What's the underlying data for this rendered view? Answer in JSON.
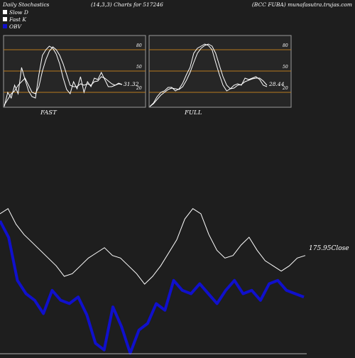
{
  "header": {
    "left": "Daily Stochastics",
    "middle": "(14,3,3) Charts for 517246",
    "right": "(BCC FUBA) munafasutra.trujas.com"
  },
  "legend": [
    {
      "label": "Slow  D",
      "swatch": "#ffffff"
    },
    {
      "label": "Fast K",
      "swatch": "#ffffff"
    },
    {
      "label": "OBV",
      "swatch": "#1010cc"
    }
  ],
  "panels": {
    "fast": {
      "caption": "FAST",
      "value_label": "31.32"
    },
    "full": {
      "caption": "FULL",
      "value_label": "28.44"
    },
    "levels": [
      "80",
      "50",
      "20"
    ],
    "level_color": "#b87a1e"
  },
  "close_label": "175.95Close",
  "colors": {
    "price": "#ffffff",
    "obv": "#1010cc",
    "panel_bg": "#262626",
    "level": "#b87a1e"
  },
  "chart_data": [
    {
      "type": "line",
      "title": "FAST",
      "ylim": [
        0,
        100
      ],
      "levels": [
        80,
        50,
        20
      ],
      "series": [
        {
          "name": "Fast K",
          "values": [
            0,
            20,
            12,
            30,
            18,
            55,
            38,
            22,
            14,
            12,
            45,
            72,
            80,
            85,
            82,
            74,
            60,
            40,
            24,
            18,
            35,
            25,
            42,
            20,
            35,
            28,
            40,
            38,
            48,
            38,
            28,
            28,
            30,
            33,
            31
          ]
        },
        {
          "name": "Slow  D",
          "values": [
            2,
            10,
            18,
            22,
            30,
            35,
            40,
            30,
            20,
            18,
            28,
            50,
            66,
            78,
            84,
            80,
            72,
            60,
            45,
            30,
            28,
            28,
            32,
            30,
            32,
            30,
            35,
            36,
            42,
            40,
            36,
            32,
            30,
            32,
            31
          ]
        }
      ]
    },
    {
      "type": "line",
      "title": "FULL",
      "ylim": [
        0,
        100
      ],
      "levels": [
        80,
        50,
        20
      ],
      "series": [
        {
          "name": "Fast K",
          "values": [
            0,
            5,
            14,
            20,
            22,
            27,
            27,
            22,
            25,
            33,
            45,
            55,
            75,
            82,
            85,
            88,
            86,
            80,
            62,
            45,
            30,
            22,
            25,
            30,
            32,
            30,
            40,
            38,
            40,
            42,
            38,
            30,
            28
          ]
        },
        {
          "name": "Slow  D",
          "values": [
            0,
            4,
            10,
            16,
            20,
            24,
            26,
            25,
            24,
            28,
            37,
            48,
            62,
            75,
            82,
            86,
            88,
            85,
            75,
            58,
            42,
            30,
            25,
            26,
            30,
            31,
            35,
            37,
            39,
            40,
            40,
            36,
            30
          ]
        }
      ]
    },
    {
      "type": "line",
      "title": "",
      "series": [
        {
          "name": "Close",
          "values": [
            192,
            194,
            188,
            184,
            181,
            178,
            175,
            172,
            168,
            169,
            172,
            175,
            177,
            179,
            176,
            175,
            172,
            169,
            165,
            168,
            172,
            177,
            182,
            190,
            194,
            192,
            184,
            178,
            175,
            176,
            180,
            183,
            178,
            174,
            172,
            170,
            172,
            175,
            176
          ]
        },
        {
          "name": "OBV",
          "values": [
            -30,
            -55,
            -120,
            -140,
            -150,
            -170,
            -135,
            -150,
            -155,
            -145,
            -172,
            -215,
            -225,
            -160,
            -190,
            -230,
            -195,
            -185,
            -155,
            -165,
            -120,
            -135,
            -140,
            -125,
            -140,
            -155,
            -135,
            -120,
            -140,
            -135,
            -150,
            -125,
            -120,
            -135,
            -140,
            -145
          ]
        }
      ]
    }
  ]
}
